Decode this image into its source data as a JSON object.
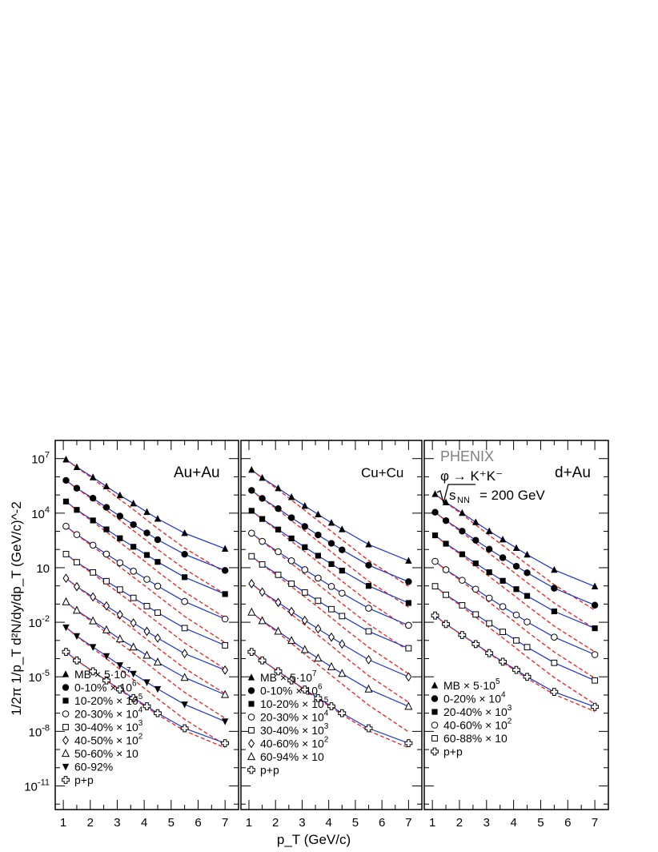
{
  "chart_data": {
    "type": "scatter",
    "x_title": "p_T (GeV/c)",
    "y_title": "1/2π 1/p_T d²N/dy/dp_T (GeV/c)^-2",
    "x_ticks": [
      "1",
      "2",
      "3",
      "4",
      "5",
      "6",
      "7"
    ],
    "y_ticks": [
      "10^7",
      "10^4",
      "10",
      "10^-2",
      "10^-5",
      "10^-8",
      "10^-11"
    ],
    "xlim": [
      0.7,
      7.5
    ],
    "ylim_log10": [
      -12.3,
      8.0
    ],
    "pt": [
      1.1,
      1.5,
      2.1,
      2.6,
      3.1,
      3.6,
      4.1,
      4.5,
      5.5,
      7.0
    ],
    "curve_colors": {
      "fit": "#1a33cc",
      "ref": "#e8201e"
    },
    "panels": [
      {
        "label": "Au+Au",
        "series": [
          {
            "name": "MB × 5·10^7",
            "marker": "triangle-up",
            "log10": [
              6.95,
              6.53,
              5.97,
              5.47,
              4.98,
              4.53,
              4.06,
              3.69,
              2.9,
              2.04
            ],
            "ref_drop": 1.3
          },
          {
            "name": "0-10% ×10^6",
            "marker": "circle-filled",
            "log10": [
              5.8,
              5.37,
              4.82,
              4.32,
              3.84,
              3.37,
              2.91,
              2.54,
              1.74,
              0.85
            ],
            "ref_drop": 1.3
          },
          {
            "name": "10-20% ×10^5",
            "marker": "square-filled",
            "log10": [
              4.64,
              4.18,
              3.6,
              3.11,
              2.62,
              2.15,
              1.7,
              1.32,
              0.48,
              -0.45
            ],
            "ref_drop": 1.3
          },
          {
            "name": "20-30% ×10^4",
            "marker": "circle-open",
            "log10": [
              3.28,
              2.82,
              2.24,
              1.75,
              1.27,
              0.81,
              0.36,
              -0.01,
              -0.86,
              -1.82
            ],
            "ref_drop": 1.3
          },
          {
            "name": "30-40% ×10^3",
            "marker": "square-open",
            "log10": [
              1.75,
              1.3,
              0.74,
              0.26,
              -0.2,
              -0.66,
              -1.11,
              -1.47,
              -2.32,
              -3.27
            ],
            "ref_drop": 1.3
          },
          {
            "name": "40-50% ×10^2",
            "marker": "diamond-open",
            "log10": [
              0.42,
              -0.04,
              -0.61,
              -1.1,
              -1.58,
              -2.04,
              -2.5,
              -2.87,
              -3.72,
              -4.63
            ],
            "ref_drop": 1.3
          },
          {
            "name": "50-60% ×10",
            "marker": "triangle-open",
            "log10": [
              -0.88,
              -1.35,
              -1.93,
              -2.42,
              -2.92,
              -3.37,
              -3.82,
              -4.2,
              -5.04,
              -5.98
            ],
            "ref_drop": 1.3
          },
          {
            "name": "60-92%",
            "marker": "triangle-down",
            "log10": [
              -2.28,
              -2.76,
              -3.36,
              -3.86,
              -4.36,
              -4.83,
              -5.3,
              -5.67,
              -6.52,
              -7.45
            ],
            "ref_drop": 1.3
          },
          {
            "name": "p+p",
            "marker": "cross-open",
            "log10": [
              -3.63,
              -4.1,
              -4.7,
              -5.2,
              -5.7,
              -6.17,
              -6.62,
              -7.0,
              -7.83,
              -8.65
            ],
            "ref_drop": 0.0
          }
        ]
      },
      {
        "label": "Cu+Cu",
        "series": [
          {
            "name": "MB × 5·10^7",
            "marker": "triangle-up",
            "log10": [
              6.38,
              5.94,
              5.37,
              4.88,
              4.4,
              3.93,
              3.47,
              3.11,
              2.28,
              1.38
            ],
            "ref_drop": 1.4
          },
          {
            "name": "0-10% ×10^6",
            "marker": "circle-filled",
            "log10": [
              5.25,
              4.81,
              4.25,
              3.75,
              3.27,
              2.8,
              2.34,
              1.98,
              1.14,
              0.23
            ],
            "ref_drop": 1.4
          },
          {
            "name": "10-20% ×10^5",
            "marker": "square-filled",
            "log10": [
              4.13,
              3.68,
              3.1,
              2.61,
              2.13,
              1.66,
              1.2,
              0.84,
              0.0,
              -0.94
            ],
            "ref_drop": 1.4
          },
          {
            "name": "20-30% ×10^4",
            "marker": "circle-open",
            "log10": [
              2.9,
              2.45,
              1.88,
              1.38,
              0.89,
              0.43,
              -0.03,
              -0.4,
              -1.23,
              -2.17
            ],
            "ref_drop": 1.4
          },
          {
            "name": "30-40% ×10^3",
            "marker": "square-open",
            "log10": [
              1.63,
              1.18,
              0.61,
              0.12,
              -0.36,
              -0.82,
              -1.28,
              -1.66,
              -2.5,
              -3.43
            ],
            "ref_drop": 1.4
          },
          {
            "name": "40-60% ×10^2",
            "marker": "diamond-open",
            "log10": [
              0.12,
              -0.34,
              -0.91,
              -1.41,
              -1.9,
              -2.36,
              -2.82,
              -3.2,
              -4.06,
              -5.0
            ],
            "ref_drop": 1.4
          },
          {
            "name": "60-94% ×10",
            "marker": "triangle-open",
            "log10": [
              -1.45,
              -1.92,
              -2.5,
              -3.01,
              -3.51,
              -3.98,
              -4.45,
              -4.82,
              -5.68,
              -6.63
            ],
            "ref_drop": 1.4
          },
          {
            "name": "p+p",
            "marker": "cross-open",
            "log10": [
              -3.63,
              -4.1,
              -4.7,
              -5.2,
              -5.7,
              -6.17,
              -6.62,
              -7.0,
              -7.83,
              -8.65
            ],
            "ref_drop": 0.0
          }
        ]
      },
      {
        "label": "d+Au",
        "series": [
          {
            "name": "MB × 5·10^5",
            "marker": "triangle-up",
            "log10": [
              5.05,
              4.59,
              4.01,
              3.5,
              3.01,
              2.55,
              2.08,
              1.72,
              0.88,
              -0.03
            ],
            "ref_drop": 1.3
          },
          {
            "name": "0-20% ×10^4",
            "marker": "circle-filled",
            "log10": [
              4.05,
              3.59,
              3.01,
              2.51,
              2.02,
              1.55,
              1.08,
              0.72,
              -0.13,
              -1.06
            ],
            "ref_drop": 1.3
          },
          {
            "name": "20-40% ×10^3",
            "marker": "square-filled",
            "log10": [
              2.78,
              2.32,
              1.74,
              1.24,
              0.75,
              0.28,
              -0.18,
              -0.55,
              -1.4,
              -2.33
            ],
            "ref_drop": 1.3
          },
          {
            "name": "40-60% ×10^2",
            "marker": "circle-open",
            "log10": [
              1.35,
              0.89,
              0.31,
              -0.18,
              -0.67,
              -1.14,
              -1.6,
              -1.98,
              -2.82,
              -3.78
            ],
            "ref_drop": 1.3
          },
          {
            "name": "60-88% ×10",
            "marker": "square-open",
            "log10": [
              -0.02,
              -0.49,
              -1.07,
              -1.57,
              -2.06,
              -2.53,
              -3.0,
              -3.37,
              -4.23,
              -5.2
            ],
            "ref_drop": 1.3
          },
          {
            "name": "p+p",
            "marker": "cross-open",
            "log10": [
              -1.63,
              -2.1,
              -2.7,
              -3.2,
              -3.7,
              -4.17,
              -4.62,
              -5.0,
              -5.83,
              -6.65
            ],
            "ref_drop": 0.0
          }
        ]
      }
    ],
    "annotations": {
      "experiment": "PHENIX",
      "decay": "φ → K⁺K⁻",
      "energy_label": "s",
      "energy_sub": "NN",
      "energy_value": "= 200 GeV"
    }
  }
}
